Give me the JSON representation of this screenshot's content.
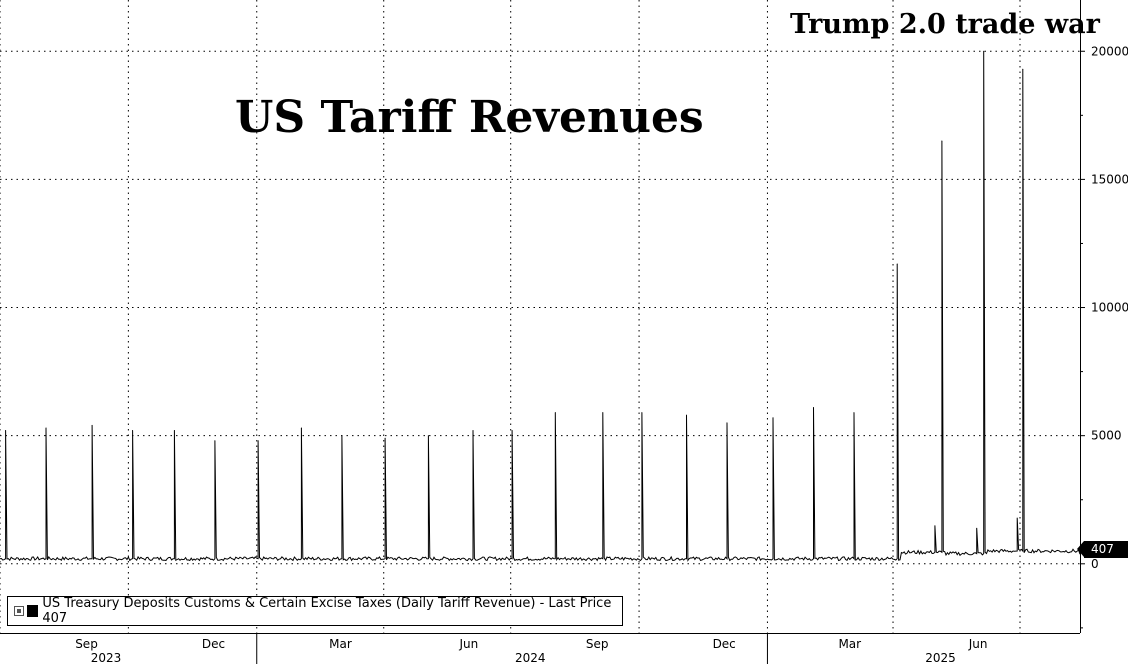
{
  "chart_data": {
    "type": "line",
    "title": "US Tariff Revenues",
    "subtitle": "Trump 2.0 trade war",
    "series": [
      {
        "name": "US Treasury Deposits Customs & Certain Excise Taxes (Daily Tariff Revenue)",
        "last_price": "407"
      }
    ],
    "legend_text": "US Treasury Deposits Customs & Certain Excise Taxes (Daily Tariff Revenue) - Last Price 407",
    "ylim": [
      -2700,
      22000
    ],
    "yticks": [
      0,
      5000,
      10000,
      15000,
      20000
    ],
    "ytick_labels": [
      "0",
      "5000",
      "10000",
      "15000",
      "20000"
    ],
    "grid": true,
    "xlim": [
      "2023-07-01",
      "2025-08-13"
    ],
    "xticks": [
      {
        "label": "Sep",
        "date": "2023-09-01"
      },
      {
        "label": "Dec",
        "date": "2023-12-01"
      },
      {
        "label": "Mar",
        "date": "2024-03-01"
      },
      {
        "label": "Jun",
        "date": "2024-06-01"
      },
      {
        "label": "Sep",
        "date": "2024-09-01"
      },
      {
        "label": "Dec",
        "date": "2024-12-01"
      },
      {
        "label": "Mar",
        "date": "2025-03-01"
      },
      {
        "label": "Jun",
        "date": "2025-06-01"
      }
    ],
    "year_labels": [
      {
        "label": "2023",
        "date": "2023-09-15"
      },
      {
        "label": "2024",
        "date": "2024-07-15"
      },
      {
        "label": "2025",
        "date": "2025-05-05"
      }
    ],
    "year_dividers": [
      "2024-01-01",
      "2025-01-01"
    ],
    "quarter_gridlines": [
      "2023-07-01",
      "2023-10-01",
      "2024-01-01",
      "2024-04-01",
      "2024-07-01",
      "2024-10-01",
      "2025-01-01",
      "2025-04-01",
      "2025-07-01"
    ],
    "baseline": 200,
    "spikes": [
      {
        "date": "2023-07-05",
        "value": 5200
      },
      {
        "date": "2023-08-03",
        "value": 5300
      },
      {
        "date": "2023-09-05",
        "value": 5400
      },
      {
        "date": "2023-10-04",
        "value": 5200
      },
      {
        "date": "2023-11-03",
        "value": 5200
      },
      {
        "date": "2023-12-02",
        "value": 4800
      },
      {
        "date": "2024-01-02",
        "value": 4800
      },
      {
        "date": "2024-02-02",
        "value": 5300
      },
      {
        "date": "2024-03-02",
        "value": 5000
      },
      {
        "date": "2024-04-02",
        "value": 4900
      },
      {
        "date": "2024-05-03",
        "value": 5000
      },
      {
        "date": "2024-06-04",
        "value": 5200
      },
      {
        "date": "2024-07-02",
        "value": 5200
      },
      {
        "date": "2024-08-02",
        "value": 5900
      },
      {
        "date": "2024-09-05",
        "value": 5900
      },
      {
        "date": "2024-10-03",
        "value": 5900
      },
      {
        "date": "2024-11-04",
        "value": 5800
      },
      {
        "date": "2024-12-03",
        "value": 5500
      },
      {
        "date": "2025-01-05",
        "value": 5700
      },
      {
        "date": "2025-02-03",
        "value": 6100
      },
      {
        "date": "2025-03-04",
        "value": 5900
      },
      {
        "date": "2025-04-04",
        "value": 11700
      },
      {
        "date": "2025-05-06",
        "value": 16500
      },
      {
        "date": "2025-06-05",
        "value": 20000
      },
      {
        "date": "2025-07-03",
        "value": 19300
      }
    ],
    "minor_bumps": [
      {
        "date": "2025-05-01",
        "value": 1500
      },
      {
        "date": "2025-05-31",
        "value": 1400
      },
      {
        "date": "2025-06-29",
        "value": 1800
      }
    ],
    "elevated_baseline": [
      {
        "date": "2025-04-07",
        "value": 450
      },
      {
        "date": "2025-05-09",
        "value": 400
      },
      {
        "date": "2025-06-08",
        "value": 500
      },
      {
        "date": "2025-07-06",
        "value": 500
      },
      {
        "date": "2025-08-13",
        "value": 407
      }
    ]
  }
}
